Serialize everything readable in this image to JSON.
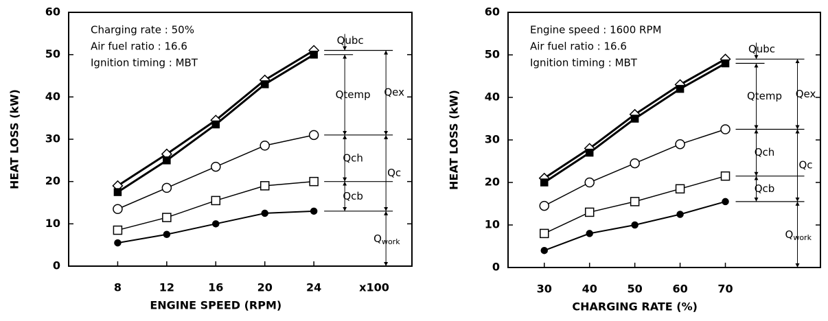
{
  "chart_data": [
    {
      "type": "line",
      "ylabel": "HEAT LOSS (kW)",
      "xlabel": "ENGINE SPEED (RPM)",
      "x_unit": "x100",
      "notes": [
        "Charging rate : 50%",
        "Air fuel ratio  : 16.6",
        "Ignition timing : MBT"
      ],
      "x": [
        8,
        12,
        16,
        20,
        24
      ],
      "xlim": [
        4,
        32
      ],
      "xticks": [
        8,
        12,
        16,
        20,
        24
      ],
      "ylim": [
        0,
        60
      ],
      "yticks": [
        0,
        10,
        20,
        30,
        40,
        50,
        60
      ],
      "series": [
        {
          "marker": "diamond-open",
          "color": "#000000",
          "line_width": 3,
          "values": [
            19,
            26.5,
            34.5,
            44,
            51
          ]
        },
        {
          "marker": "square-filled",
          "color": "#000000",
          "line_width": 3,
          "values": [
            17.5,
            25,
            33.5,
            43,
            50
          ]
        },
        {
          "marker": "circle-open",
          "color": "#000000",
          "line_width": 1.5,
          "values": [
            13.5,
            18.5,
            23.5,
            28.5,
            31
          ]
        },
        {
          "marker": "square-open",
          "color": "#000000",
          "line_width": 1.5,
          "values": [
            8.5,
            11.5,
            15.5,
            19,
            20
          ]
        },
        {
          "marker": "circle-filled",
          "color": "#000000",
          "line_width": 2,
          "values": [
            5.5,
            7.5,
            10,
            12.5,
            13
          ]
        }
      ],
      "brackets": [
        "Qubc",
        "Qex",
        "Qtemp",
        "Qch",
        "Qc",
        "Qcb"
      ],
      "work_label": {
        "main": "Q",
        "sub": "work"
      }
    },
    {
      "type": "line",
      "ylabel": "HEAT LOSS (kW)",
      "xlabel": "CHARGING RATE (%)",
      "notes": [
        "Engine speed : 1600 RPM",
        "Air fuel ratio  : 16.6",
        "Ignition timing : MBT"
      ],
      "x": [
        30,
        40,
        50,
        60,
        70
      ],
      "xlim": [
        22,
        91
      ],
      "xticks": [
        30,
        40,
        50,
        60,
        70
      ],
      "ylim": [
        0,
        60
      ],
      "yticks": [
        0,
        10,
        20,
        30,
        40,
        50,
        60
      ],
      "series": [
        {
          "marker": "diamond-open",
          "color": "#000000",
          "line_width": 3,
          "values": [
            21,
            28,
            36,
            43,
            49
          ]
        },
        {
          "marker": "square-filled",
          "color": "#000000",
          "line_width": 3,
          "values": [
            20,
            27,
            35,
            42,
            48
          ]
        },
        {
          "marker": "circle-open",
          "color": "#000000",
          "line_width": 1.5,
          "values": [
            14.5,
            20,
            24.5,
            29,
            32.5
          ]
        },
        {
          "marker": "square-open",
          "color": "#000000",
          "line_width": 1.5,
          "values": [
            8,
            13,
            15.5,
            18.5,
            21.5
          ]
        },
        {
          "marker": "circle-filled",
          "color": "#000000",
          "line_width": 2,
          "values": [
            4,
            8,
            10,
            12.5,
            15.5
          ]
        }
      ],
      "brackets": [
        "Qubc",
        "Qex",
        "Qtemp",
        "Qch",
        "Qc",
        "Qcb"
      ],
      "work_label": {
        "main": "Q",
        "sub": "work"
      }
    }
  ]
}
